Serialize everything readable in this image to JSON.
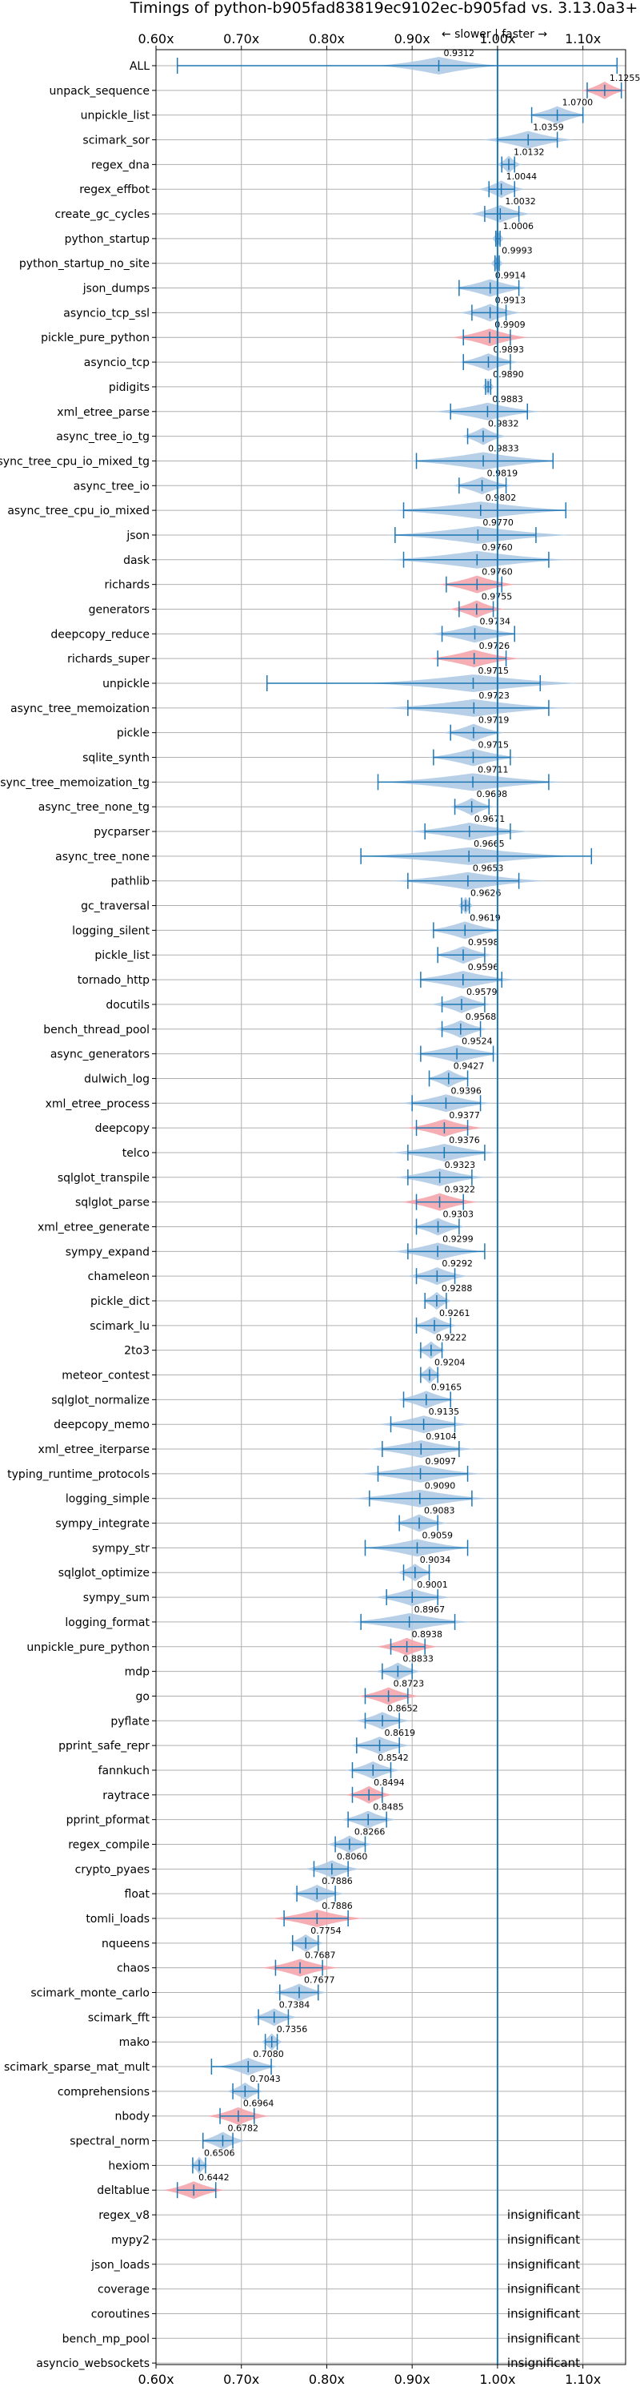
{
  "chart_data": {
    "type": "violin",
    "title": "Timings of python-b905fad83819ec9102ec-b905fad vs. 3.13.0a3+",
    "subtitle": "← slower | faster →",
    "xlim": [
      0.6,
      1.15
    ],
    "xticks": [
      0.6,
      0.7,
      0.8,
      0.9,
      1.0,
      1.1
    ],
    "xtick_labels": [
      "0.60x",
      "0.70x",
      "0.80x",
      "0.90x",
      "1.00x",
      "1.10x"
    ],
    "reference_line": 1.0,
    "grid": true,
    "colors": {
      "normal": "#1f77b4",
      "slower": "#f4a0a8",
      "violin": "#aac8e4"
    },
    "insignificant_text": "insignificant",
    "benchmarks": [
      {
        "name": "ALL",
        "value": 0.9312,
        "label": "0.9312",
        "min": 0.625,
        "max": 1.14,
        "spread": 0.04,
        "slower": false
      },
      {
        "name": "unpack_sequence",
        "value": 1.1255,
        "label": "1.1255",
        "min": 1.105,
        "max": 1.145,
        "spread": 0.015,
        "slower": true
      },
      {
        "name": "unpickle_list",
        "value": 1.07,
        "label": "1.0700",
        "min": 1.04,
        "max": 1.1,
        "spread": 0.02,
        "slower": false
      },
      {
        "name": "scimark_sor",
        "value": 1.0359,
        "label": "1.0359",
        "min": 1.0,
        "max": 1.07,
        "spread": 0.03,
        "slower": false
      },
      {
        "name": "regex_dna",
        "value": 1.0132,
        "label": "1.0132",
        "min": 1.005,
        "max": 1.02,
        "spread": 0.008,
        "slower": false
      },
      {
        "name": "regex_effbot",
        "value": 1.0044,
        "label": "1.0044",
        "min": 0.99,
        "max": 1.02,
        "spread": 0.015,
        "slower": false
      },
      {
        "name": "create_gc_cycles",
        "value": 1.0032,
        "label": "1.0032",
        "min": 0.985,
        "max": 1.025,
        "spread": 0.02,
        "slower": false
      },
      {
        "name": "python_startup",
        "value": 1.0006,
        "label": "1.0006",
        "min": 0.998,
        "max": 1.003,
        "spread": 0.004,
        "slower": false
      },
      {
        "name": "python_startup_no_site",
        "value": 0.9993,
        "label": "0.9993",
        "min": 0.997,
        "max": 1.002,
        "spread": 0.004,
        "slower": false
      },
      {
        "name": "json_dumps",
        "value": 0.9914,
        "label": "0.9914",
        "min": 0.955,
        "max": 1.025,
        "spread": 0.025,
        "slower": false
      },
      {
        "name": "asyncio_tcp_ssl",
        "value": 0.9913,
        "label": "0.9913",
        "min": 0.97,
        "max": 1.01,
        "spread": 0.02,
        "slower": false
      },
      {
        "name": "pickle_pure_python",
        "value": 0.9909,
        "label": "0.9909",
        "min": 0.96,
        "max": 1.015,
        "spread": 0.025,
        "slower": true
      },
      {
        "name": "asyncio_tcp",
        "value": 0.9893,
        "label": "0.9893",
        "min": 0.96,
        "max": 1.015,
        "spread": 0.02,
        "slower": false
      },
      {
        "name": "pidigits",
        "value": 0.989,
        "label": "0.9890",
        "min": 0.986,
        "max": 0.992,
        "spread": 0.004,
        "slower": false
      },
      {
        "name": "xml_etree_parse",
        "value": 0.9883,
        "label": "0.9883",
        "min": 0.945,
        "max": 1.035,
        "spread": 0.035,
        "slower": false
      },
      {
        "name": "async_tree_io_tg",
        "value": 0.9832,
        "label": "0.9832",
        "min": 0.965,
        "max": 1.0,
        "spread": 0.015,
        "slower": false
      },
      {
        "name": "async_tree_cpu_io_mixed_tg",
        "value": 0.9833,
        "label": "0.9833",
        "min": 0.905,
        "max": 1.065,
        "spread": 0.05,
        "slower": false
      },
      {
        "name": "async_tree_io",
        "value": 0.9819,
        "label": "0.9819",
        "min": 0.955,
        "max": 1.01,
        "spread": 0.02,
        "slower": false
      },
      {
        "name": "async_tree_cpu_io_mixed",
        "value": 0.9802,
        "label": "0.9802",
        "min": 0.89,
        "max": 1.08,
        "spread": 0.06,
        "slower": false
      },
      {
        "name": "json",
        "value": 0.977,
        "label": "0.9770",
        "min": 0.88,
        "max": 1.045,
        "spread": 0.06,
        "slower": false
      },
      {
        "name": "dask",
        "value": 0.976,
        "label": "0.9760",
        "min": 0.89,
        "max": 1.06,
        "spread": 0.06,
        "slower": false
      },
      {
        "name": "richards",
        "value": 0.976,
        "label": "0.9760",
        "min": 0.94,
        "max": 1.005,
        "spread": 0.025,
        "slower": true
      },
      {
        "name": "generators",
        "value": 0.9755,
        "label": "0.9755",
        "min": 0.955,
        "max": 0.995,
        "spread": 0.018,
        "slower": true
      },
      {
        "name": "deepcopy_reduce",
        "value": 0.9734,
        "label": "0.9734",
        "min": 0.935,
        "max": 1.02,
        "spread": 0.03,
        "slower": false
      },
      {
        "name": "richards_super",
        "value": 0.9726,
        "label": "0.9726",
        "min": 0.93,
        "max": 1.01,
        "spread": 0.03,
        "slower": true
      },
      {
        "name": "unpickle",
        "value": 0.9715,
        "label": "0.9715",
        "min": 0.73,
        "max": 1.05,
        "spread": 0.07,
        "slower": false
      },
      {
        "name": "async_tree_memoization",
        "value": 0.9723,
        "label": "0.9723",
        "min": 0.895,
        "max": 1.06,
        "spread": 0.06,
        "slower": false
      },
      {
        "name": "pickle",
        "value": 0.9719,
        "label": "0.9719",
        "min": 0.945,
        "max": 1.0,
        "spread": 0.02,
        "slower": false
      },
      {
        "name": "sqlite_synth",
        "value": 0.9715,
        "label": "0.9715",
        "min": 0.925,
        "max": 1.015,
        "spread": 0.03,
        "slower": false
      },
      {
        "name": "async_tree_memoization_tg",
        "value": 0.9711,
        "label": "0.9711",
        "min": 0.86,
        "max": 1.06,
        "spread": 0.06,
        "slower": false
      },
      {
        "name": "async_tree_none_tg",
        "value": 0.9698,
        "label": "0.9698",
        "min": 0.95,
        "max": 0.99,
        "spread": 0.015,
        "slower": false
      },
      {
        "name": "pycparser",
        "value": 0.9671,
        "label": "0.9671",
        "min": 0.915,
        "max": 1.015,
        "spread": 0.04,
        "slower": false
      },
      {
        "name": "async_tree_none",
        "value": 0.9665,
        "label": "0.9665",
        "min": 0.84,
        "max": 1.11,
        "spread": 0.07,
        "slower": false
      },
      {
        "name": "pathlib",
        "value": 0.9653,
        "label": "0.9653",
        "min": 0.895,
        "max": 1.025,
        "spread": 0.05,
        "slower": false
      },
      {
        "name": "gc_traversal",
        "value": 0.9626,
        "label": "0.9626",
        "min": 0.958,
        "max": 0.967,
        "spread": 0.005,
        "slower": false
      },
      {
        "name": "logging_silent",
        "value": 0.9619,
        "label": "0.9619",
        "min": 0.925,
        "max": 1.0,
        "spread": 0.025,
        "slower": false
      },
      {
        "name": "pickle_list",
        "value": 0.9598,
        "label": "0.9598",
        "min": 0.93,
        "max": 0.985,
        "spread": 0.02,
        "slower": false
      },
      {
        "name": "tornado_http",
        "value": 0.9596,
        "label": "0.9596",
        "min": 0.91,
        "max": 1.005,
        "spread": 0.035,
        "slower": false
      },
      {
        "name": "docutils",
        "value": 0.9579,
        "label": "0.9579",
        "min": 0.935,
        "max": 0.985,
        "spread": 0.02,
        "slower": false
      },
      {
        "name": "bench_thread_pool",
        "value": 0.9568,
        "label": "0.9568",
        "min": 0.935,
        "max": 0.98,
        "spread": 0.018,
        "slower": false
      },
      {
        "name": "async_generators",
        "value": 0.9524,
        "label": "0.9524",
        "min": 0.91,
        "max": 0.995,
        "spread": 0.03,
        "slower": false
      },
      {
        "name": "dulwich_log",
        "value": 0.9427,
        "label": "0.9427",
        "min": 0.92,
        "max": 0.965,
        "spread": 0.015,
        "slower": false
      },
      {
        "name": "xml_etree_process",
        "value": 0.9396,
        "label": "0.9396",
        "min": 0.9,
        "max": 0.98,
        "spread": 0.03,
        "slower": false
      },
      {
        "name": "deepcopy",
        "value": 0.9377,
        "label": "0.9377",
        "min": 0.905,
        "max": 0.965,
        "spread": 0.025,
        "slower": true
      },
      {
        "name": "telco",
        "value": 0.9376,
        "label": "0.9376",
        "min": 0.895,
        "max": 0.985,
        "spread": 0.035,
        "slower": false
      },
      {
        "name": "sqlglot_transpile",
        "value": 0.9323,
        "label": "0.9323",
        "min": 0.895,
        "max": 0.97,
        "spread": 0.03,
        "slower": false
      },
      {
        "name": "sqlglot_parse",
        "value": 0.9322,
        "label": "0.9322",
        "min": 0.905,
        "max": 0.96,
        "spread": 0.025,
        "slower": true
      },
      {
        "name": "xml_etree_generate",
        "value": 0.9303,
        "label": "0.9303",
        "min": 0.905,
        "max": 0.955,
        "spread": 0.018,
        "slower": false
      },
      {
        "name": "sympy_expand",
        "value": 0.9299,
        "label": "0.9299",
        "min": 0.895,
        "max": 0.985,
        "spread": 0.03,
        "slower": false
      },
      {
        "name": "chameleon",
        "value": 0.9292,
        "label": "0.9292",
        "min": 0.905,
        "max": 0.95,
        "spread": 0.02,
        "slower": false
      },
      {
        "name": "pickle_dict",
        "value": 0.9288,
        "label": "0.9288",
        "min": 0.915,
        "max": 0.94,
        "spread": 0.01,
        "slower": false
      },
      {
        "name": "scimark_lu",
        "value": 0.9261,
        "label": "0.9261",
        "min": 0.905,
        "max": 0.945,
        "spread": 0.015,
        "slower": false
      },
      {
        "name": "2to3",
        "value": 0.9222,
        "label": "0.9222",
        "min": 0.91,
        "max": 0.935,
        "spread": 0.01,
        "slower": false
      },
      {
        "name": "meteor_contest",
        "value": 0.9204,
        "label": "0.9204",
        "min": 0.91,
        "max": 0.93,
        "spread": 0.008,
        "slower": false
      },
      {
        "name": "sqlglot_normalize",
        "value": 0.9165,
        "label": "0.9165",
        "min": 0.89,
        "max": 0.945,
        "spread": 0.02,
        "slower": false
      },
      {
        "name": "deepcopy_memo",
        "value": 0.9135,
        "label": "0.9135",
        "min": 0.875,
        "max": 0.95,
        "spread": 0.03,
        "slower": false
      },
      {
        "name": "xml_etree_iterparse",
        "value": 0.9104,
        "label": "0.9104",
        "min": 0.865,
        "max": 0.955,
        "spread": 0.035,
        "slower": false
      },
      {
        "name": "typing_runtime_protocols",
        "value": 0.9097,
        "label": "0.9097",
        "min": 0.86,
        "max": 0.965,
        "spread": 0.04,
        "slower": false
      },
      {
        "name": "logging_simple",
        "value": 0.909,
        "label": "0.9090",
        "min": 0.85,
        "max": 0.97,
        "spread": 0.045,
        "slower": false
      },
      {
        "name": "sympy_integrate",
        "value": 0.9083,
        "label": "0.9083",
        "min": 0.885,
        "max": 0.93,
        "spread": 0.018,
        "slower": false
      },
      {
        "name": "sympy_str",
        "value": 0.9059,
        "label": "0.9059",
        "min": 0.845,
        "max": 0.965,
        "spread": 0.035,
        "slower": false
      },
      {
        "name": "sqlglot_optimize",
        "value": 0.9034,
        "label": "0.9034",
        "min": 0.89,
        "max": 0.92,
        "spread": 0.012,
        "slower": false
      },
      {
        "name": "sympy_sum",
        "value": 0.9001,
        "label": "0.9001",
        "min": 0.87,
        "max": 0.93,
        "spread": 0.025,
        "slower": false
      },
      {
        "name": "logging_format",
        "value": 0.8967,
        "label": "0.8967",
        "min": 0.84,
        "max": 0.95,
        "spread": 0.04,
        "slower": false
      },
      {
        "name": "unpickle_pure_python",
        "value": 0.8938,
        "label": "0.8938",
        "min": 0.875,
        "max": 0.915,
        "spread": 0.02,
        "slower": true
      },
      {
        "name": "mdp",
        "value": 0.8833,
        "label": "0.8833",
        "min": 0.865,
        "max": 0.9,
        "spread": 0.015,
        "slower": false
      },
      {
        "name": "go",
        "value": 0.8723,
        "label": "0.8723",
        "min": 0.845,
        "max": 0.895,
        "spread": 0.02,
        "slower": true
      },
      {
        "name": "pyflate",
        "value": 0.8652,
        "label": "0.8652",
        "min": 0.845,
        "max": 0.885,
        "spread": 0.018,
        "slower": false
      },
      {
        "name": "pprint_safe_repr",
        "value": 0.8619,
        "label": "0.8619",
        "min": 0.835,
        "max": 0.885,
        "spread": 0.02,
        "slower": false
      },
      {
        "name": "fannkuch",
        "value": 0.8542,
        "label": "0.8542",
        "min": 0.83,
        "max": 0.875,
        "spread": 0.018,
        "slower": false
      },
      {
        "name": "raytrace",
        "value": 0.8494,
        "label": "0.8494",
        "min": 0.83,
        "max": 0.865,
        "spread": 0.015,
        "slower": true
      },
      {
        "name": "pprint_pformat",
        "value": 0.8485,
        "label": "0.8485",
        "min": 0.825,
        "max": 0.87,
        "spread": 0.018,
        "slower": false
      },
      {
        "name": "regex_compile",
        "value": 0.8266,
        "label": "0.8266",
        "min": 0.81,
        "max": 0.845,
        "spread": 0.015,
        "slower": false
      },
      {
        "name": "crypto_pyaes",
        "value": 0.806,
        "label": "0.8060",
        "min": 0.785,
        "max": 0.825,
        "spread": 0.018,
        "slower": false
      },
      {
        "name": "float",
        "value": 0.7886,
        "label": "0.7886",
        "min": 0.765,
        "max": 0.81,
        "spread": 0.018,
        "slower": false
      },
      {
        "name": "tomli_loads",
        "value": 0.7886,
        "label": "0.7886",
        "min": 0.75,
        "max": 0.825,
        "spread": 0.03,
        "slower": true
      },
      {
        "name": "nqueens",
        "value": 0.7754,
        "label": "0.7754",
        "min": 0.76,
        "max": 0.79,
        "spread": 0.012,
        "slower": false
      },
      {
        "name": "chaos",
        "value": 0.7687,
        "label": "0.7687",
        "min": 0.74,
        "max": 0.795,
        "spread": 0.025,
        "slower": true
      },
      {
        "name": "scimark_monte_carlo",
        "value": 0.7677,
        "label": "0.7677",
        "min": 0.745,
        "max": 0.79,
        "spread": 0.018,
        "slower": false
      },
      {
        "name": "scimark_fft",
        "value": 0.7384,
        "label": "0.7384",
        "min": 0.72,
        "max": 0.755,
        "spread": 0.015,
        "slower": false
      },
      {
        "name": "mako",
        "value": 0.7356,
        "label": "0.7356",
        "min": 0.728,
        "max": 0.742,
        "spread": 0.007,
        "slower": false
      },
      {
        "name": "scimark_sparse_mat_mult",
        "value": 0.708,
        "label": "0.7080",
        "min": 0.665,
        "max": 0.735,
        "spread": 0.02,
        "slower": false
      },
      {
        "name": "comprehensions",
        "value": 0.7043,
        "label": "0.7043",
        "min": 0.69,
        "max": 0.72,
        "spread": 0.012,
        "slower": false
      },
      {
        "name": "nbody",
        "value": 0.6964,
        "label": "0.6964",
        "min": 0.675,
        "max": 0.715,
        "spread": 0.02,
        "slower": true
      },
      {
        "name": "spectral_norm",
        "value": 0.6782,
        "label": "0.6782",
        "min": 0.655,
        "max": 0.69,
        "spread": 0.015,
        "slower": false
      },
      {
        "name": "hexiom",
        "value": 0.6506,
        "label": "0.6506",
        "min": 0.643,
        "max": 0.658,
        "spread": 0.006,
        "slower": false
      },
      {
        "name": "deltablue",
        "value": 0.6442,
        "label": "0.6442",
        "min": 0.625,
        "max": 0.67,
        "spread": 0.02,
        "slower": true
      },
      {
        "name": "regex_v8",
        "insignificant": true
      },
      {
        "name": "mypy2",
        "insignificant": true
      },
      {
        "name": "json_loads",
        "insignificant": true
      },
      {
        "name": "coverage",
        "insignificant": true
      },
      {
        "name": "coroutines",
        "insignificant": true
      },
      {
        "name": "bench_mp_pool",
        "insignificant": true
      },
      {
        "name": "asyncio_websockets",
        "insignificant": true
      }
    ]
  }
}
